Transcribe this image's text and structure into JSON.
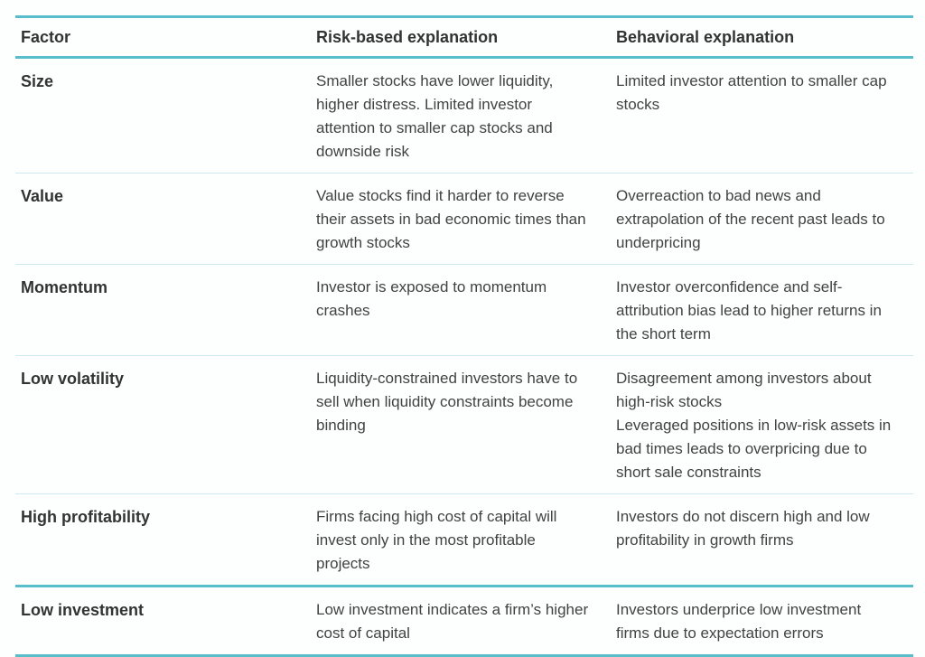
{
  "table": {
    "accent_color": "#58bfca",
    "separator_color": "#cde8ef",
    "columns": [
      "Factor",
      "Risk-based explanation",
      "Behavioral explanation"
    ],
    "rows": [
      {
        "factor": "Size",
        "risk": "Smaller stocks have lower liquidity, higher distress. Limited investor attention to smaller cap stocks and downside risk",
        "behavioral": "Limited investor attention to smaller cap stocks"
      },
      {
        "factor": "Value",
        "risk": "Value stocks find it harder to reverse their assets in bad economic times than growth stocks",
        "behavioral": "Overreaction to bad news and extrapolation of the recent past leads to underpricing"
      },
      {
        "factor": "Momentum",
        "risk": "Investor is exposed to momentum crashes",
        "behavioral": "Investor overconfidence and self-attribution bias lead to higher returns in the short term"
      },
      {
        "factor": "Low volatility",
        "risk": "Liquidity-constrained investors have to sell when liquidity constraints become binding",
        "behavioral": "Disagreement among investors about high-risk stocks\nLeveraged positions in low-risk assets in bad times leads to overpricing due to short sale constraints"
      },
      {
        "factor": "High profitability",
        "risk": "Firms facing high cost of capital will invest only in the most profitable projects",
        "behavioral": "Investors do not discern high and low profitability in growth firms"
      },
      {
        "factor": "Low investment",
        "risk": "Low investment indicates a firm’s higher cost of capital",
        "behavioral": "Investors underprice low investment firms due to expectation errors"
      }
    ]
  }
}
